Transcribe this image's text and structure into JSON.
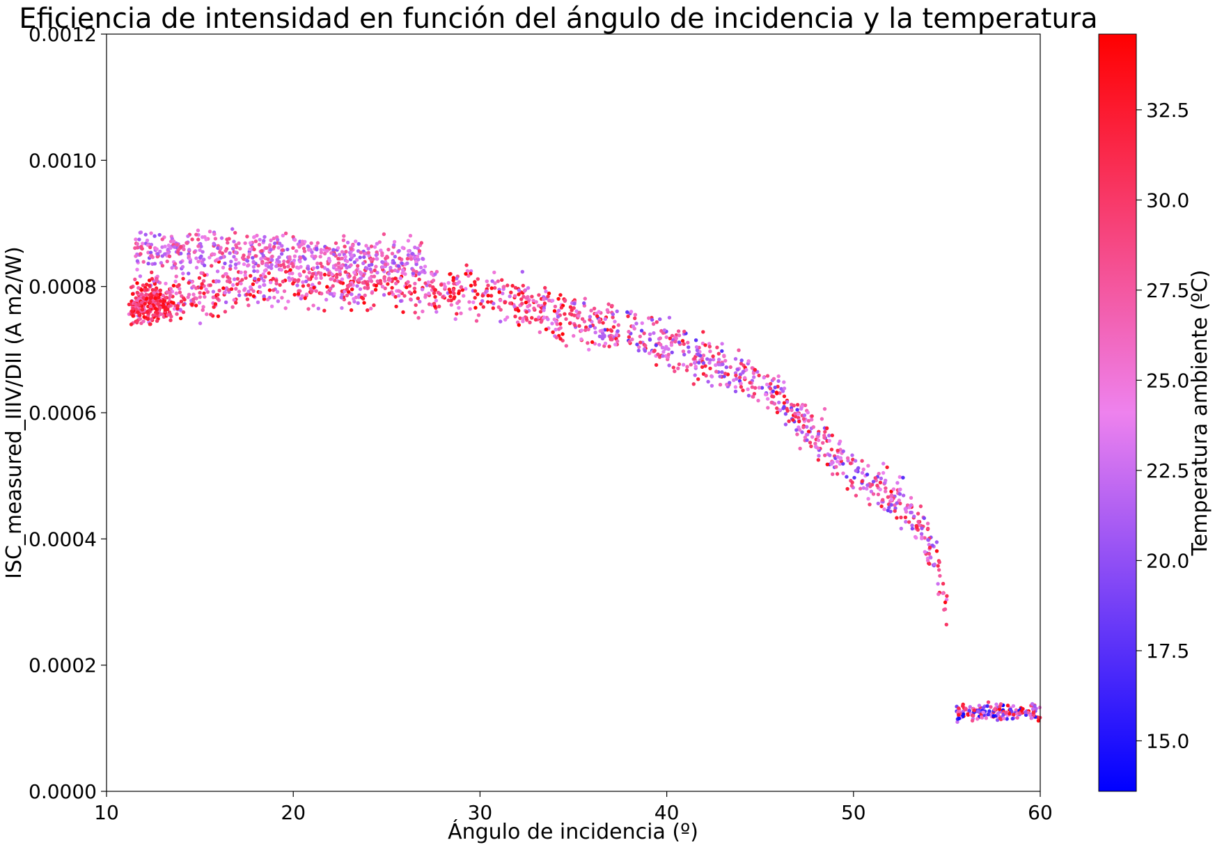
{
  "chart_data": {
    "type": "scatter",
    "title": "Eficiencia de intensidad en función del ángulo de incidencia y la temperatura",
    "xlabel": "Ángulo de incidencia (º)",
    "ylabel": "ISC_measured_IIIV/DII (A m2/W)",
    "xlim": [
      10,
      60
    ],
    "ylim": [
      0,
      0.0012
    ],
    "xticks": [
      "10",
      "20",
      "30",
      "40",
      "50",
      "60"
    ],
    "yticks": [
      "0.0000",
      "0.0002",
      "0.0004",
      "0.0006",
      "0.0008",
      "0.0010",
      "0.0012"
    ],
    "grid": false,
    "colorbar": {
      "label": "Temperatura ambiente (ºC)",
      "range": [
        13.6,
        34.6
      ],
      "ticks": [
        "15.0",
        "17.5",
        "20.0",
        "22.5",
        "25.0",
        "27.5",
        "30.0",
        "32.5"
      ],
      "colors": [
        "#0000ff",
        "#ee82ee",
        "#ff0000"
      ]
    },
    "trend": {
      "description_points": [
        [
          11,
          0.00077
        ],
        [
          15,
          0.00079
        ],
        [
          20,
          0.00081
        ],
        [
          25,
          0.0008
        ],
        [
          30,
          0.00079
        ],
        [
          35,
          0.00075
        ],
        [
          40,
          0.00071
        ],
        [
          42.5,
          0.00067
        ],
        [
          45,
          0.00065
        ],
        [
          47.5,
          0.00058
        ],
        [
          50,
          0.00051
        ],
        [
          52.5,
          0.00046
        ],
        [
          54,
          0.0004
        ],
        [
          55,
          0.00029
        ]
      ],
      "spread": 4e-05
    },
    "cluster_high": {
      "x": [
        11.5,
        27
      ],
      "y_center": 0.00086,
      "y_spread": 3e-05
    },
    "cluster_low": {
      "x": [
        55.5,
        60
      ],
      "y_center": 0.000125,
      "y_spread": 1.2e-05
    }
  }
}
